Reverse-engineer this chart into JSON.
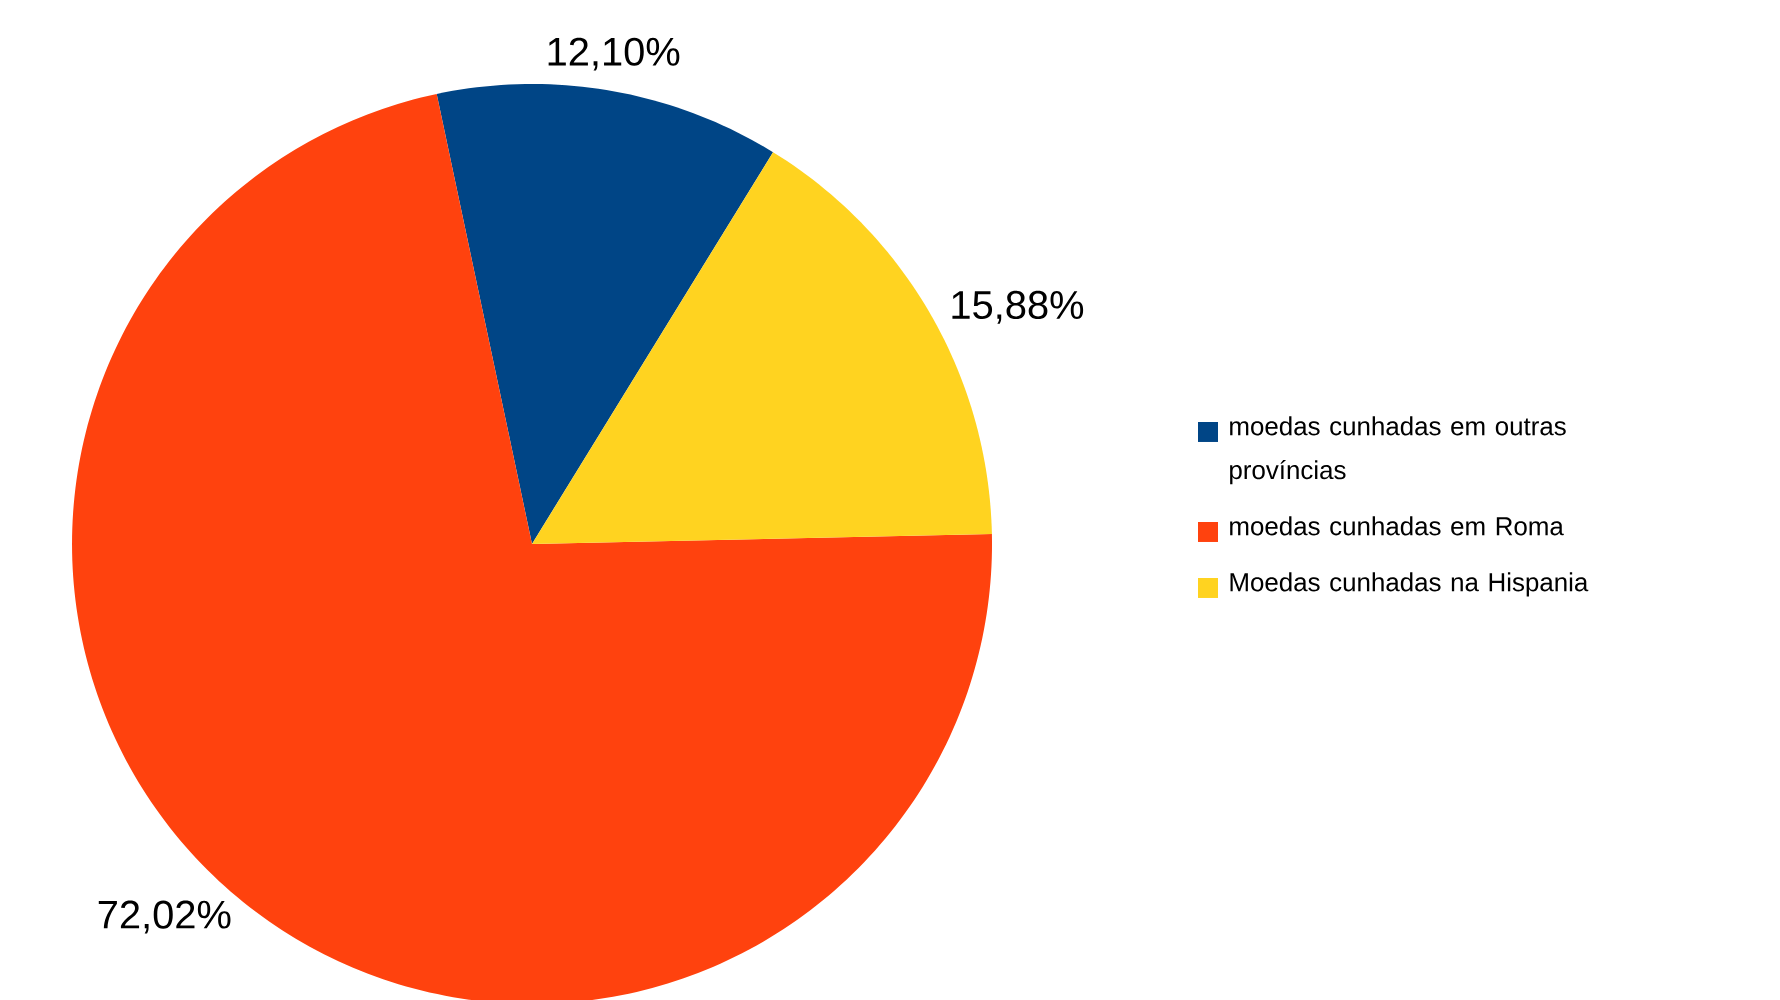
{
  "chart_data": {
    "type": "pie",
    "categories": [
      "moedas cunhadas em outras províncias",
      "moedas cunhadas em Roma",
      "Moedas cunhadas na Hispania"
    ],
    "values": [
      12.1,
      72.02,
      15.88
    ],
    "colors": [
      "#004586",
      "#ff420e",
      "#ffd320"
    ],
    "value_labels": [
      "12,10%",
      "72,02%",
      "15,88%"
    ],
    "legend": "right"
  }
}
